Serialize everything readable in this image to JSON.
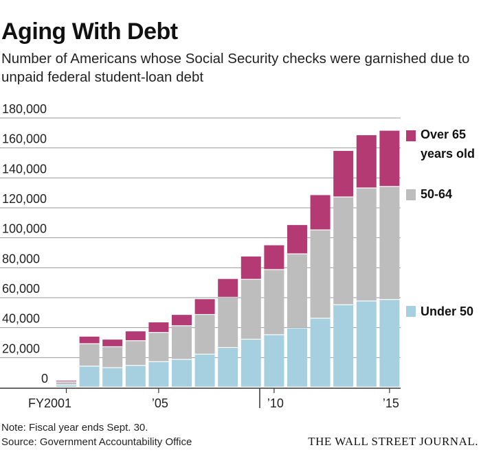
{
  "header": {
    "title": "Aging With Debt",
    "subtitle": "Number of Americans whose Social Security checks were garnished due to unpaid federal student-loan debt"
  },
  "footer": {
    "note": "Note: Fiscal year ends Sept. 30.",
    "source": "Source: Government Accountability Office",
    "brand": "THE WALL STREET JOURNAL."
  },
  "colors": {
    "under50": "#a6cfe0",
    "age50_64": "#bdbdbd",
    "over65": "#b33a72",
    "grid": "#9a9a9a",
    "axis": "#333333"
  },
  "chart_data": {
    "type": "bar",
    "stacked": true,
    "categories": [
      "2001",
      "2002",
      "2003",
      "2004",
      "2005",
      "2006",
      "2007",
      "2008",
      "2009",
      "2010",
      "2011",
      "2012",
      "2013",
      "2014",
      "2015"
    ],
    "x_tick_labels": [
      {
        "category": "2001",
        "label": "FY2001"
      },
      {
        "category": "2005",
        "label": "’05"
      },
      {
        "category": "2010",
        "label": "’10"
      },
      {
        "category": "2015",
        "label": "’15"
      }
    ],
    "series": [
      {
        "name": "Under 50",
        "color": "#a6cfe0",
        "values": [
          1500,
          14000,
          13000,
          14500,
          17000,
          18500,
          22000,
          26500,
          32000,
          35000,
          39500,
          46000,
          55000,
          57500,
          58500
        ]
      },
      {
        "name": "50-64",
        "color": "#bdbdbd",
        "values": [
          2000,
          15000,
          14000,
          16500,
          19500,
          22500,
          26500,
          33500,
          40000,
          43500,
          49500,
          59000,
          72000,
          75500,
          75500
        ]
      },
      {
        "name": "Over 65 years old",
        "color": "#b33a72",
        "values": [
          1000,
          5000,
          5000,
          6500,
          7000,
          7500,
          10500,
          12500,
          15500,
          16500,
          19500,
          23500,
          31000,
          35500,
          37500
        ]
      }
    ],
    "y_ticks": [
      "0",
      "20,000",
      "40,000",
      "60,000",
      "80,000",
      "100,000",
      "120,000",
      "140,000",
      "160,000",
      "180,000"
    ],
    "ylim": [
      0,
      180000
    ],
    "grid": true,
    "legend": [
      {
        "lines": [
          "Over 65",
          "years old"
        ],
        "color": "#b33a72"
      },
      {
        "lines": [
          "50-64"
        ],
        "color": "#bdbdbd"
      },
      {
        "lines": [
          "Under 50"
        ],
        "color": "#a6cfe0"
      }
    ],
    "legend_placement": "right",
    "title": "Aging With Debt",
    "xlabel": "",
    "ylabel": ""
  }
}
